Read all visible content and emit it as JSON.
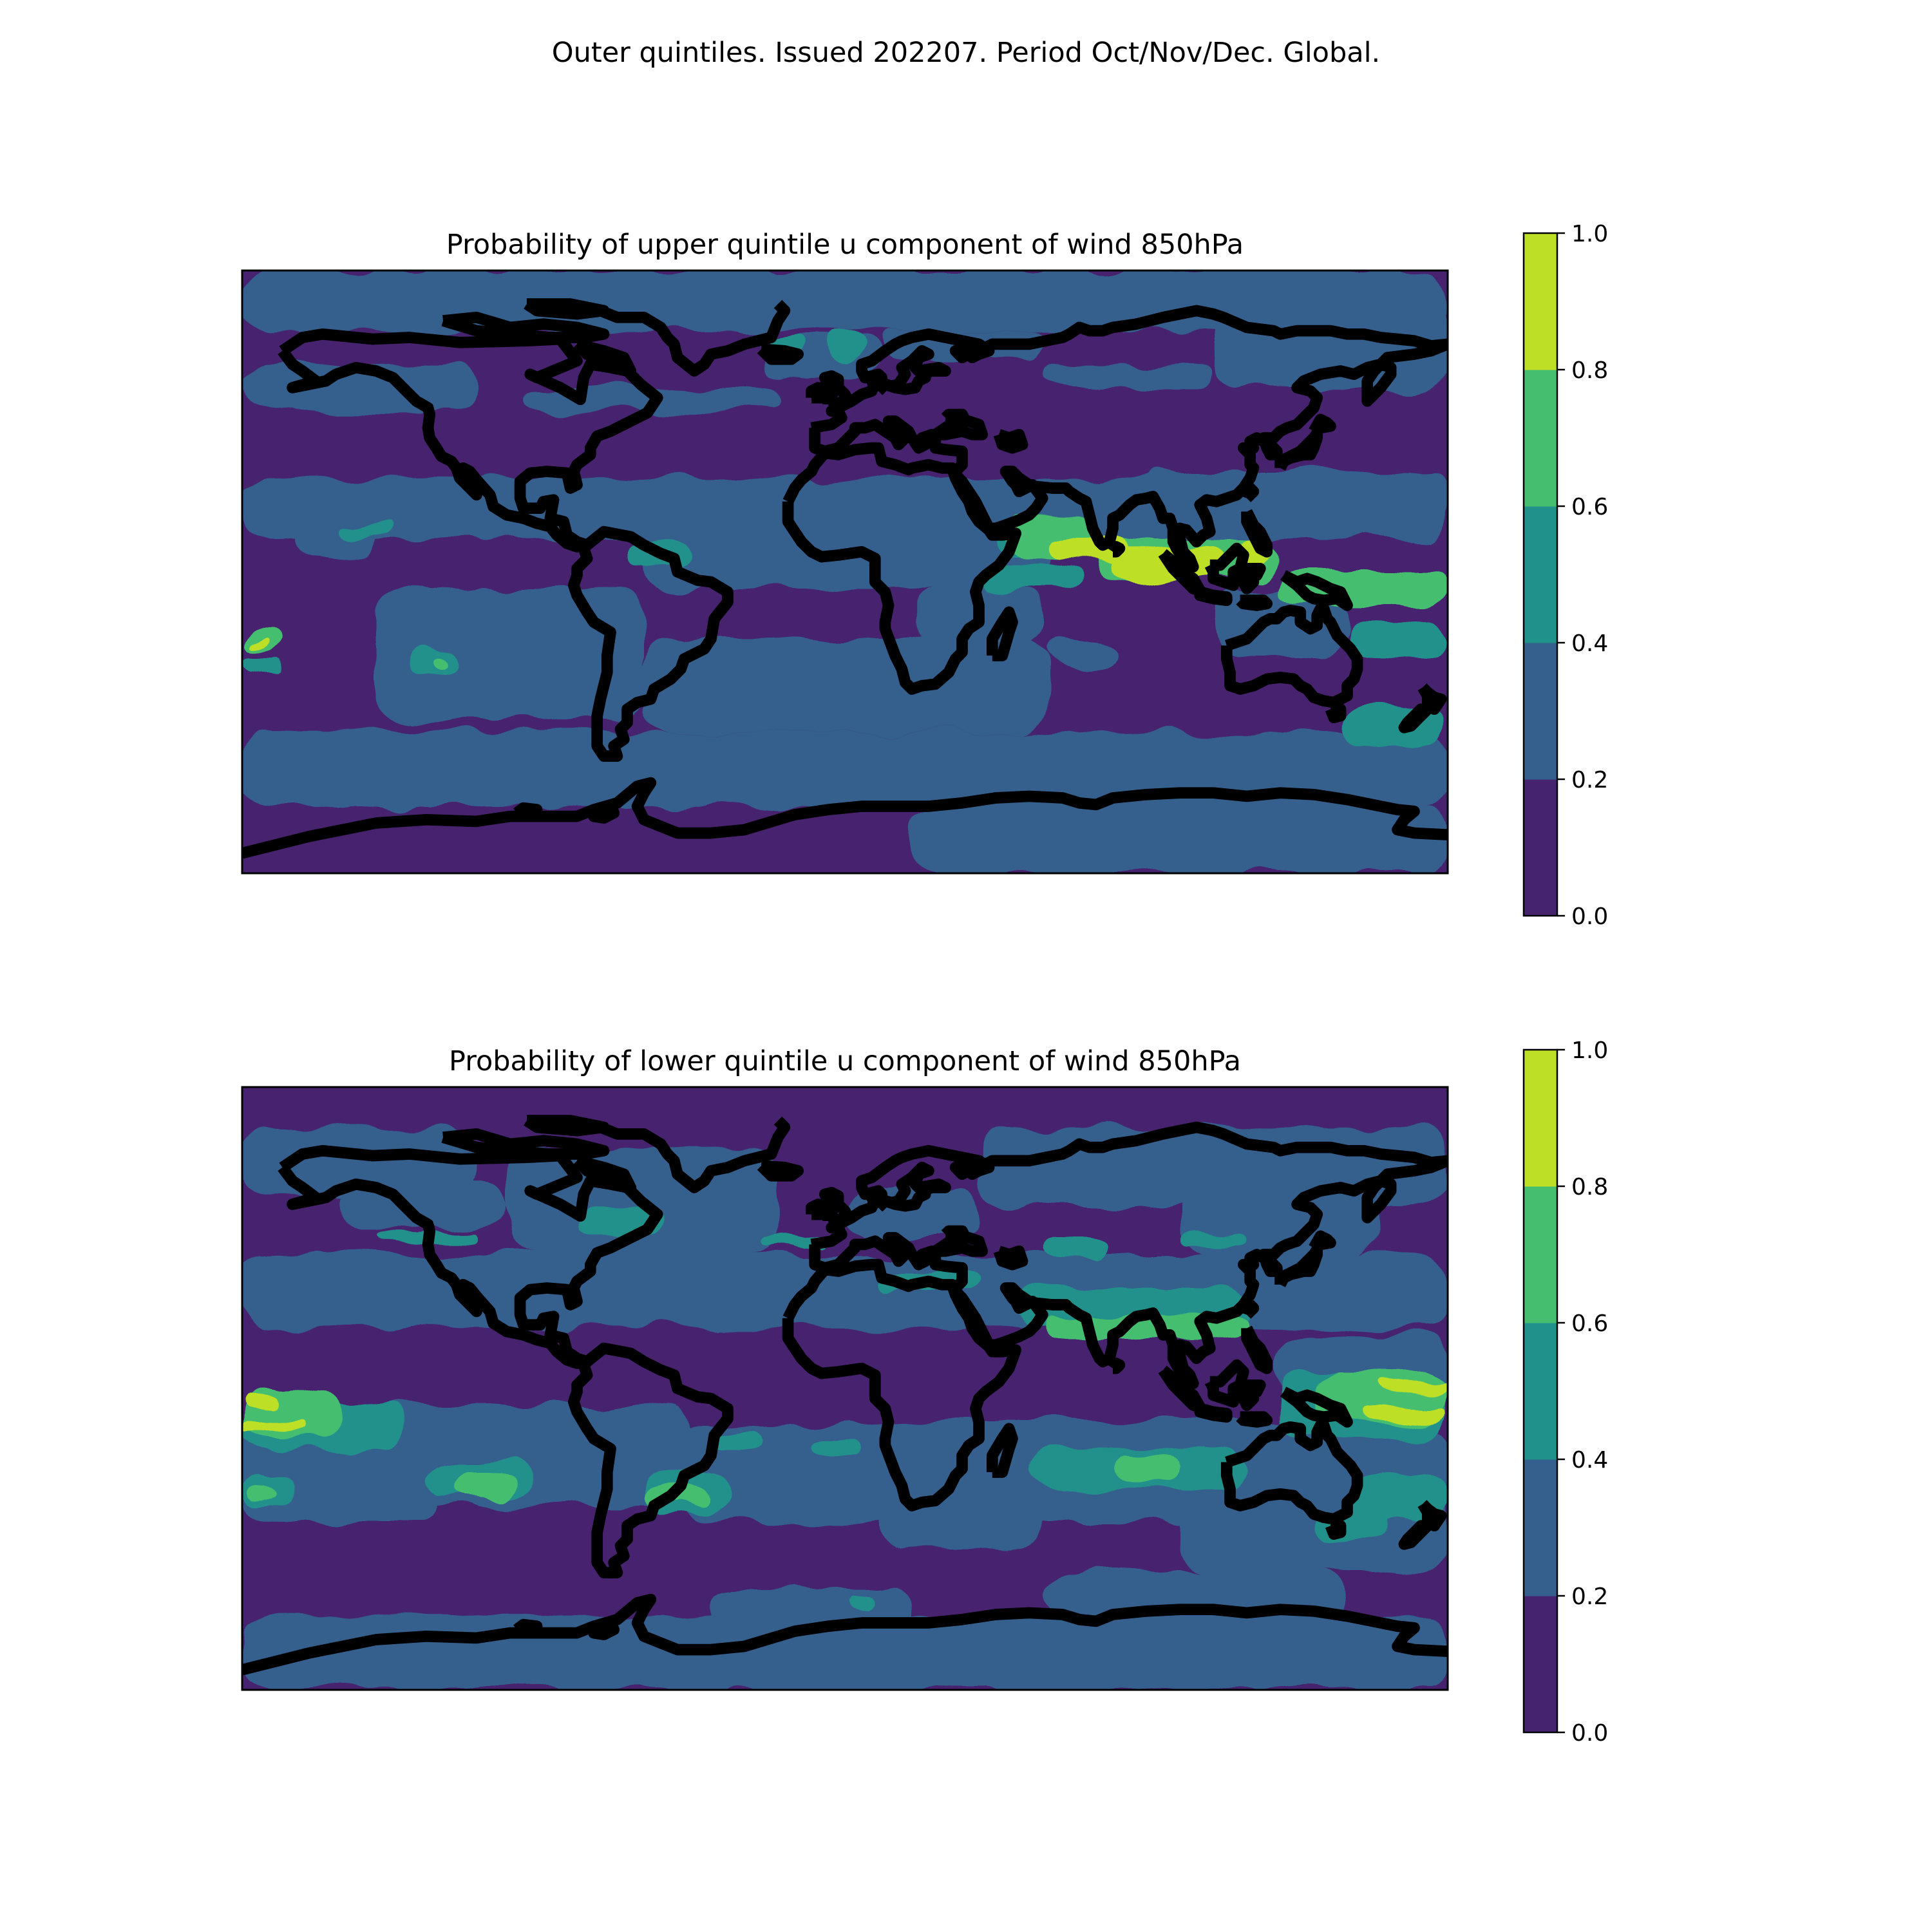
{
  "figure_title": "Outer quintiles. Issued 202207. Period Oct/Nov/Dec. Global.",
  "colormap": {
    "levels": [
      0.0,
      0.2,
      0.4,
      0.6,
      0.8,
      1.0
    ],
    "colors": [
      "#46236e",
      "#355f8c",
      "#21918c",
      "#45be70",
      "#bddf26"
    ]
  },
  "panels": [
    {
      "title": "Probability of upper quintile u component of wind 850hPa",
      "colorbar": {
        "ticks": [
          "0.0",
          "0.2",
          "0.4",
          "0.6",
          "0.8",
          "1.0"
        ]
      },
      "fields": [
        {
          "level": 1,
          "regions": [
            [
              -180,
              90,
              180,
              72
            ],
            [
              -180,
              62,
              -110,
              48
            ],
            [
              -95,
              55,
              -20,
              48
            ],
            [
              -25,
              70,
              10,
              58
            ],
            [
              10,
              72,
              60,
              64
            ],
            [
              60,
              62,
              110,
              55
            ],
            [
              110,
              80,
              180,
              55
            ],
            [
              -180,
              28,
              180,
              10
            ],
            [
              -165,
              15,
              -140,
              5
            ],
            [
              -60,
              22,
              60,
              -5
            ],
            [
              -140,
              -5,
              -60,
              -45
            ],
            [
              -60,
              -20,
              60,
              -48
            ],
            [
              20,
              -5,
              60,
              -22
            ],
            [
              60,
              -20,
              80,
              -30
            ],
            [
              110,
              -5,
              150,
              -25
            ],
            [
              90,
              30,
              180,
              20
            ],
            [
              -180,
              -48,
              180,
              -70
            ],
            [
              20,
              -70,
              180,
              -90
            ]
          ]
        },
        {
          "level": 2,
          "regions": [
            [
              -150,
              14,
              -135,
              11
            ],
            [
              -65,
              8,
              -45,
              2
            ],
            [
              -25,
              70,
              -12,
              63
            ],
            [
              -5,
              72,
              5,
              62
            ],
            [
              40,
              2,
              70,
              -5
            ],
            [
              -130,
              -22,
              -115,
              -30
            ],
            [
              150,
              -40,
              180,
              -52
            ],
            [
              -180,
              -25,
              -168,
              -30
            ],
            [
              45,
              14,
              65,
              5
            ],
            [
              150,
              -15,
              180,
              -25
            ]
          ]
        },
        {
          "level": 3,
          "regions": [
            [
              48,
              16,
              75,
              4
            ],
            [
              75,
              10,
              130,
              -2
            ],
            [
              130,
              0,
              180,
              -10
            ],
            [
              -180,
              -17,
              -168,
              -23
            ],
            [
              -122,
              -24,
              -118,
              -28
            ]
          ]
        },
        {
          "level": 4,
          "regions": [
            [
              60,
              10,
              85,
              4
            ],
            [
              80,
              8,
              115,
              -2
            ],
            [
              118,
              10,
              128,
              4
            ],
            [
              -178,
              -20,
              -172,
              -22
            ]
          ]
        }
      ]
    },
    {
      "title": "Probability of lower quintile u component of wind 850hPa",
      "colorbar": {
        "ticks": [
          "0.0",
          "0.2",
          "0.4",
          "0.6",
          "0.8",
          "1.0"
        ]
      },
      "fields": [
        {
          "level": 1,
          "regions": [
            [
              -180,
              -68,
              180,
              -90
            ],
            [
              -180,
              78,
              -110,
              58
            ],
            [
              -150,
              62,
              -100,
              48
            ],
            [
              -100,
              72,
              -20,
              40
            ],
            [
              0,
              60,
              40,
              45
            ],
            [
              40,
              78,
              180,
              55
            ],
            [
              100,
              62,
              160,
              40
            ],
            [
              -180,
              40,
              180,
              18
            ],
            [
              -180,
              -10,
              -120,
              -40
            ],
            [
              -150,
              -5,
              -45,
              -35
            ],
            [
              -50,
              -10,
              180,
              -40
            ],
            [
              10,
              -20,
              60,
              -48
            ],
            [
              100,
              -30,
              180,
              -55
            ],
            [
              130,
              16,
              180,
              -5
            ],
            [
              -40,
              -60,
              20,
              -75
            ],
            [
              60,
              -55,
              150,
              -70
            ]
          ]
        },
        {
          "level": 2,
          "regions": [
            [
              -140,
              47,
              -110,
              44
            ],
            [
              -80,
              54,
              -55,
              46
            ],
            [
              -25,
              45,
              -5,
              42
            ],
            [
              10,
              35,
              40,
              30
            ],
            [
              60,
              45,
              80,
              38
            ],
            [
              100,
              46,
              120,
              42
            ],
            [
              50,
              30,
              120,
              18
            ],
            [
              -180,
              -5,
              -130,
              -18
            ],
            [
              -180,
              -25,
              -165,
              -35
            ],
            [
              -125,
              -22,
              -95,
              -32
            ],
            [
              -60,
              -25,
              -35,
              -38
            ],
            [
              -40,
              -12,
              -25,
              -18
            ],
            [
              -10,
              -15,
              5,
              -20
            ],
            [
              55,
              -18,
              120,
              -30
            ],
            [
              140,
              -37,
              160,
              -45
            ],
            [
              130,
              5,
              180,
              -15
            ],
            [
              150,
              -25,
              180,
              -40
            ],
            [
              0,
              -62,
              10,
              -66
            ]
          ]
        },
        {
          "level": 3,
          "regions": [
            [
              -180,
              0,
              -150,
              -15
            ],
            [
              -115,
              -25,
              -100,
              -33
            ],
            [
              -60,
              -30,
              -40,
              -35
            ],
            [
              80,
              -20,
              100,
              -28
            ],
            [
              60,
              22,
              120,
              15
            ],
            [
              140,
              5,
              180,
              -10
            ],
            [
              -178,
              -28,
              -170,
              -33
            ]
          ]
        },
        {
          "level": 4,
          "regions": [
            [
              -180,
              -2,
              -168,
              -6
            ],
            [
              -180,
              -10,
              -160,
              -13
            ],
            [
              160,
              2,
              180,
              -1
            ],
            [
              155,
              -5,
              180,
              -9
            ]
          ]
        }
      ]
    }
  ]
}
